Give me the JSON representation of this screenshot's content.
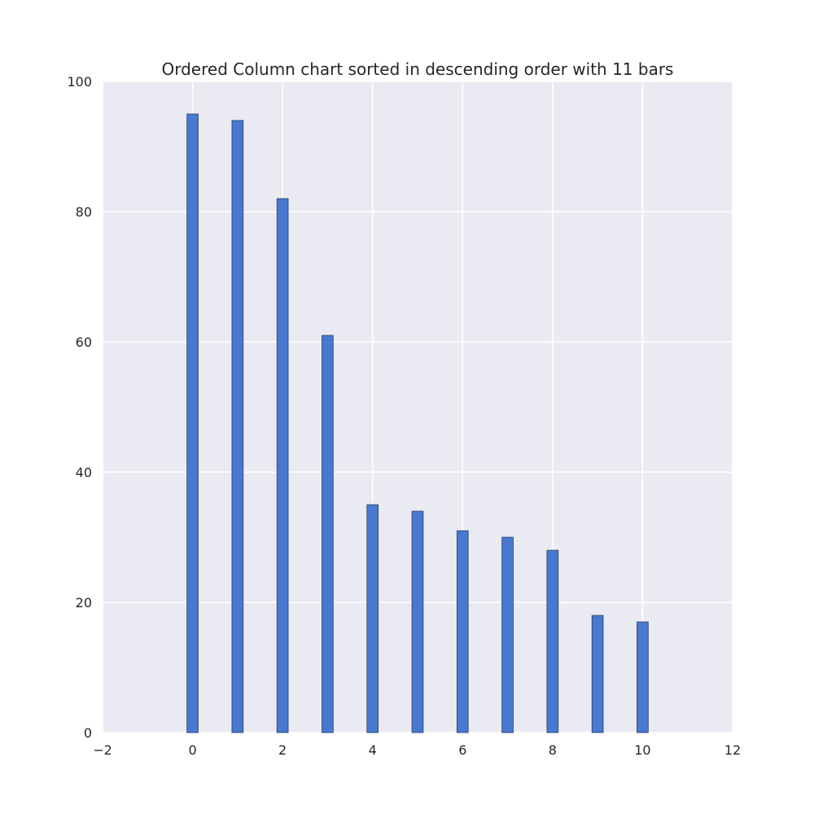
{
  "chart_data": {
    "type": "bar",
    "title": "Ordered Column chart sorted in descending order with 11 bars",
    "xlabel": "",
    "ylabel": "",
    "x": [
      0,
      1,
      2,
      3,
      4,
      5,
      6,
      7,
      8,
      9,
      10
    ],
    "values": [
      95,
      94,
      82,
      61,
      35,
      34,
      31,
      30,
      28,
      18,
      17
    ],
    "xlim": [
      -2,
      12
    ],
    "ylim": [
      0,
      100
    ],
    "xticks": [
      -2,
      0,
      2,
      4,
      6,
      8,
      10,
      12
    ],
    "xtick_labels": [
      "−2",
      "0",
      "2",
      "4",
      "6",
      "8",
      "10",
      "12"
    ],
    "yticks": [
      0,
      20,
      40,
      60,
      80,
      100
    ],
    "ytick_labels": [
      "0",
      "20",
      "40",
      "60",
      "80",
      "100"
    ],
    "bar_width": 0.25,
    "grid": true,
    "legend": "none",
    "colors": {
      "bar": "#4878d0",
      "background": "#eaeaf2",
      "grid": "#ffffff",
      "text": "#262626"
    }
  }
}
